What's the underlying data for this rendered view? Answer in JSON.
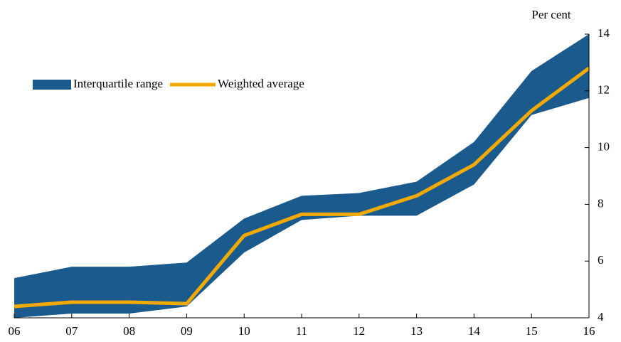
{
  "chart_data": {
    "type": "line",
    "y_label": "Per cent",
    "categories": [
      "06",
      "07",
      "08",
      "09",
      "10",
      "11",
      "12",
      "13",
      "14",
      "15",
      "16"
    ],
    "series": [
      {
        "name": "Interquartile range",
        "color": "#1b5a8c",
        "type": "band",
        "upper": [
          5.4,
          5.8,
          5.8,
          5.95,
          7.5,
          8.3,
          8.4,
          8.8,
          10.2,
          12.7,
          14
        ],
        "lower": [
          4.0,
          4.15,
          4.15,
          4.4,
          6.3,
          7.45,
          7.6,
          7.6,
          8.7,
          11.15,
          11.75
        ]
      },
      {
        "name": "Weighted average",
        "color": "#f2a900",
        "type": "line",
        "values": [
          4.4,
          4.55,
          4.55,
          4.5,
          6.9,
          7.65,
          7.65,
          8.3,
          9.4,
          11.3,
          12.8
        ]
      }
    ],
    "ylim": [
      4,
      14
    ],
    "yticks": [
      4,
      6,
      8,
      10,
      12,
      14
    ],
    "y_axis_side": "right",
    "legend": "upper left",
    "grid": false
  }
}
